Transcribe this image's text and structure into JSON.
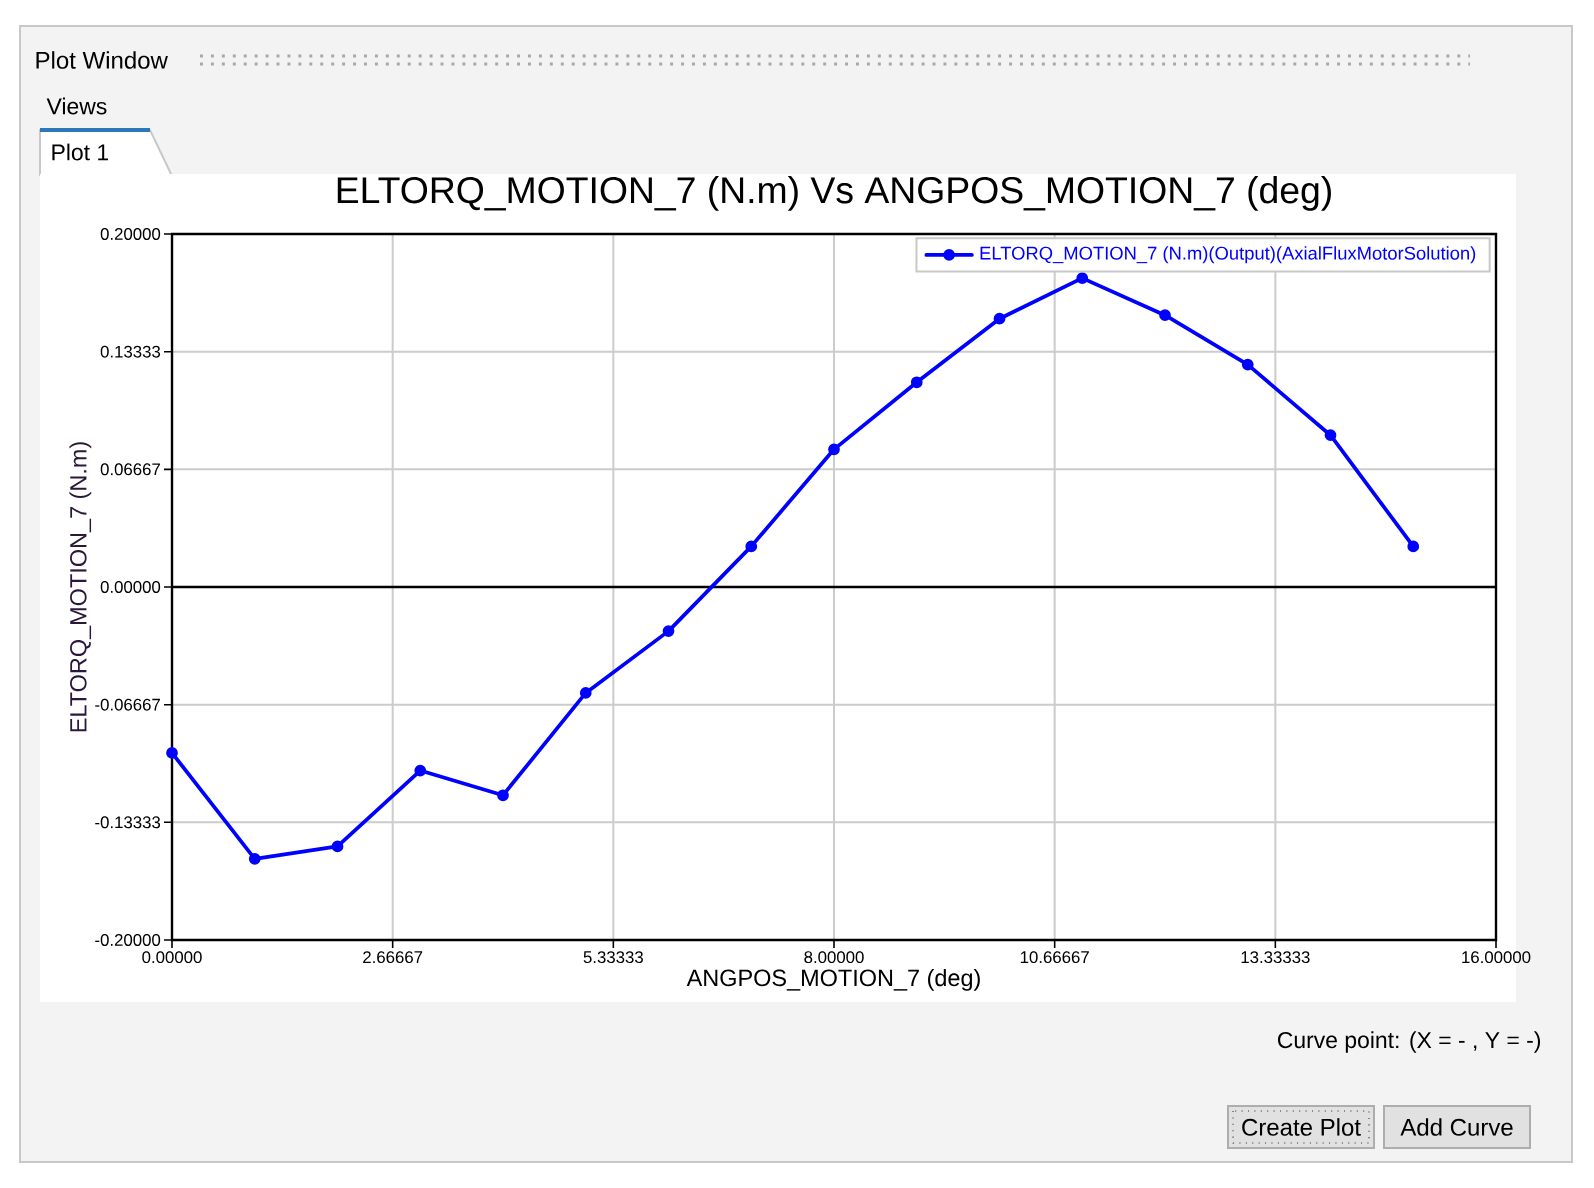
{
  "chart_data": {
    "type": "line",
    "title": "ELTORQ_MOTION_7  (N.m) Vs ANGPOS_MOTION_7 (deg)",
    "xlabel": "ANGPOS_MOTION_7 (deg)",
    "ylabel": "ELTORQ_MOTION_7 (N.m)",
    "x": [
      0,
      1,
      2,
      3,
      4,
      5,
      6,
      7,
      8,
      9,
      10,
      11,
      12,
      13,
      14,
      15
    ],
    "series": [
      {
        "name": "ELTORQ_MOTION_7 (N.m)(Output)(AxialFluxMotorSolution)",
        "color": "#0000ff",
        "values": [
          -0.094,
          -0.154,
          -0.147,
          -0.104,
          -0.118,
          -0.06,
          -0.025,
          0.023,
          0.078,
          0.116,
          0.152,
          0.175,
          0.154,
          0.126,
          0.086,
          0.023
        ]
      }
    ],
    "xlim": [
      0,
      16
    ],
    "ylim": [
      -0.2,
      0.2
    ],
    "xticks": [
      {
        "value": 0,
        "label": "0.00000"
      },
      {
        "value": 2.66667,
        "label": "2.66667"
      },
      {
        "value": 5.33333,
        "label": "5.33333"
      },
      {
        "value": 8,
        "label": "8.00000"
      },
      {
        "value": 10.66667,
        "label": "10.66667"
      },
      {
        "value": 13.33333,
        "label": "13.33333"
      },
      {
        "value": 16,
        "label": "16.00000"
      }
    ],
    "yticks": [
      {
        "value": -0.2,
        "label": "-0.20000"
      },
      {
        "value": -0.13333,
        "label": "-0.13333"
      },
      {
        "value": -0.06667,
        "label": "-0.06667"
      },
      {
        "value": 0,
        "label": "0.00000"
      },
      {
        "value": 0.06667,
        "label": "0.06667"
      },
      {
        "value": 0.13333,
        "label": "0.13333"
      },
      {
        "value": 0.2,
        "label": "0.20000"
      }
    ],
    "grid": true,
    "legend": "top right",
    "marker": "circle",
    "line_style": "solid",
    "ref_lines": [
      {
        "axis": "y",
        "value": 0,
        "color": "#000000"
      }
    ],
    "annotations": [
      "Plot Window",
      "Views",
      "Plot 1",
      "Curve point: (X = -  , Y = -)",
      "Create Plot",
      "Add Curve"
    ]
  }
}
